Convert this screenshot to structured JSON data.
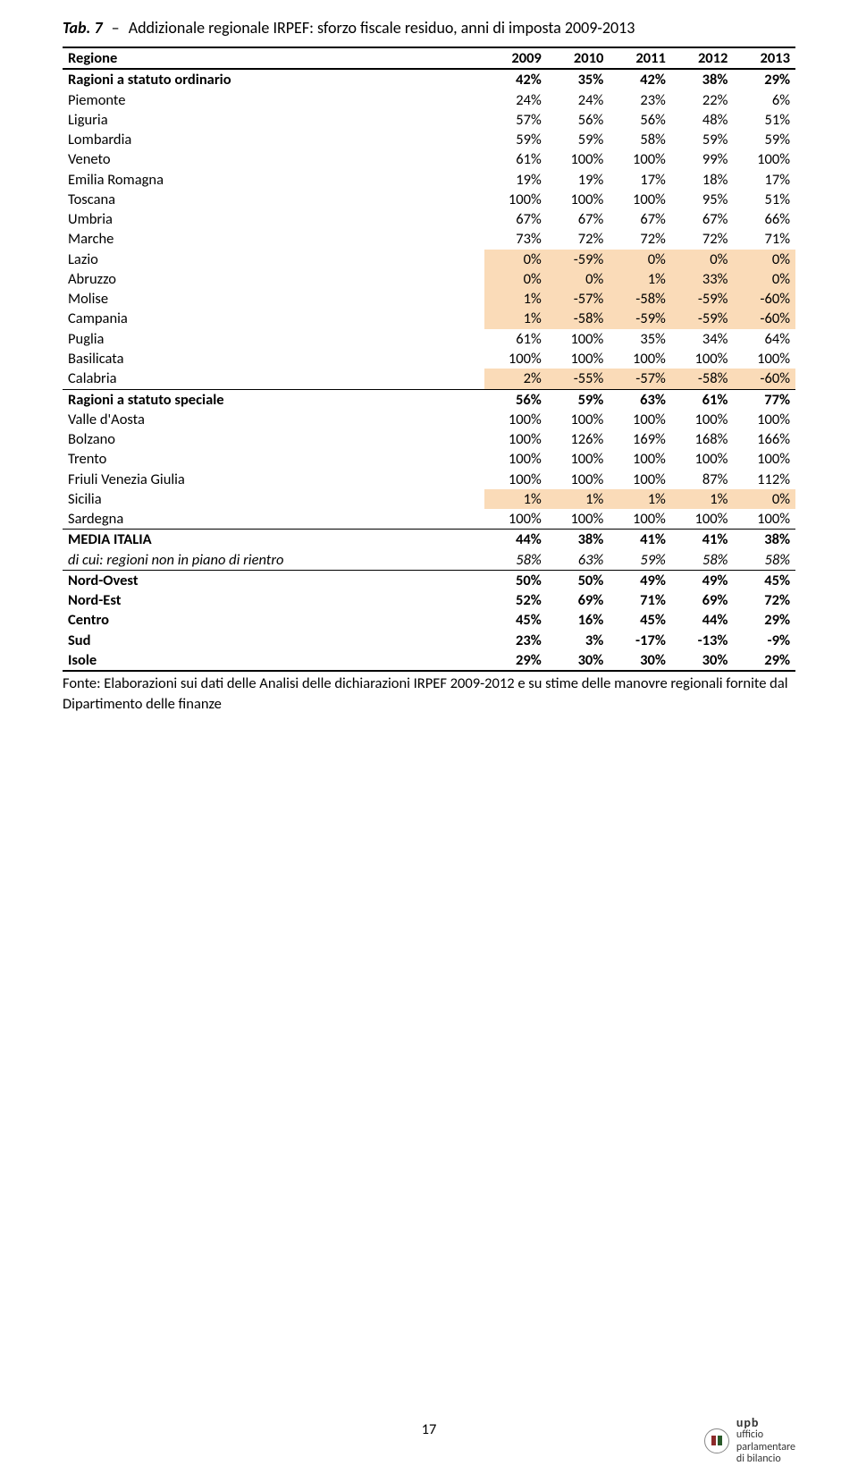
{
  "title": {
    "prefix": "Tab. 7",
    "dash": "–",
    "text": "Addizionale regionale IRPEF: sforzo fiscale residuo, anni di imposta 2009-2013"
  },
  "columns": [
    "Regione",
    "2009",
    "2010",
    "2011",
    "2012",
    "2013"
  ],
  "rows": [
    {
      "c": [
        "Ragioni a statuto ordinario",
        "42%",
        "35%",
        "42%",
        "38%",
        "29%"
      ],
      "bold": true,
      "topBorder": "bt2",
      "hl": []
    },
    {
      "c": [
        "Piemonte",
        "24%",
        "24%",
        "23%",
        "22%",
        "6%"
      ],
      "hl": []
    },
    {
      "c": [
        "Liguria",
        "57%",
        "56%",
        "56%",
        "48%",
        "51%"
      ],
      "hl": []
    },
    {
      "c": [
        "Lombardia",
        "59%",
        "59%",
        "58%",
        "59%",
        "59%"
      ],
      "hl": []
    },
    {
      "c": [
        "Veneto",
        "61%",
        "100%",
        "100%",
        "99%",
        "100%"
      ],
      "hl": []
    },
    {
      "c": [
        "Emilia Romagna",
        "19%",
        "19%",
        "17%",
        "18%",
        "17%"
      ],
      "hl": []
    },
    {
      "c": [
        "Toscana",
        "100%",
        "100%",
        "100%",
        "95%",
        "51%"
      ],
      "hl": []
    },
    {
      "c": [
        "Umbria",
        "67%",
        "67%",
        "67%",
        "67%",
        "66%"
      ],
      "hl": []
    },
    {
      "c": [
        "Marche",
        "73%",
        "72%",
        "72%",
        "72%",
        "71%"
      ],
      "hl": []
    },
    {
      "c": [
        "Lazio",
        "0%",
        "-59%",
        "0%",
        "0%",
        "0%"
      ],
      "hl": [
        1,
        2,
        3,
        4,
        5
      ]
    },
    {
      "c": [
        "Abruzzo",
        "0%",
        "0%",
        "1%",
        "33%",
        "0%"
      ],
      "hl": [
        1,
        2,
        3,
        4,
        5
      ]
    },
    {
      "c": [
        "Molise",
        "1%",
        "-57%",
        "-58%",
        "-59%",
        "-60%"
      ],
      "hl": [
        1,
        2,
        3,
        4,
        5
      ]
    },
    {
      "c": [
        "Campania",
        "1%",
        "-58%",
        "-59%",
        "-59%",
        "-60%"
      ],
      "hl": [
        1,
        2,
        3,
        4,
        5
      ]
    },
    {
      "c": [
        "Puglia",
        "61%",
        "100%",
        "35%",
        "34%",
        "64%"
      ],
      "hl": []
    },
    {
      "c": [
        "Basilicata",
        "100%",
        "100%",
        "100%",
        "100%",
        "100%"
      ],
      "hl": []
    },
    {
      "c": [
        "Calabria",
        "2%",
        "-55%",
        "-57%",
        "-58%",
        "-60%"
      ],
      "hl": [
        1,
        2,
        3,
        4,
        5
      ],
      "bottomBorder": "bb1"
    },
    {
      "c": [
        "Ragioni a statuto speciale",
        "56%",
        "59%",
        "63%",
        "61%",
        "77%"
      ],
      "bold": true,
      "hl": []
    },
    {
      "c": [
        "Valle d'Aosta",
        "100%",
        "100%",
        "100%",
        "100%",
        "100%"
      ],
      "hl": []
    },
    {
      "c": [
        "Bolzano",
        "100%",
        "126%",
        "169%",
        "168%",
        "166%"
      ],
      "hl": []
    },
    {
      "c": [
        "Trento",
        "100%",
        "100%",
        "100%",
        "100%",
        "100%"
      ],
      "hl": []
    },
    {
      "c": [
        "Friuli Venezia Giulia",
        "100%",
        "100%",
        "100%",
        "87%",
        "112%"
      ],
      "hl": []
    },
    {
      "c": [
        "Sicilia",
        "1%",
        "1%",
        "1%",
        "1%",
        "0%"
      ],
      "hl": [
        1,
        2,
        3,
        4,
        5
      ]
    },
    {
      "c": [
        "Sardegna",
        "100%",
        "100%",
        "100%",
        "100%",
        "100%"
      ],
      "hl": [],
      "bottomBorder": "bb1"
    },
    {
      "c": [
        "MEDIA ITALIA",
        "44%",
        "38%",
        "41%",
        "41%",
        "38%"
      ],
      "bold": true,
      "hl": []
    },
    {
      "c": [
        "di cui: regioni non in piano di rientro",
        "58%",
        "63%",
        "59%",
        "58%",
        "58%"
      ],
      "italic": true,
      "hl": [],
      "bottomBorder": "bb1"
    },
    {
      "c": [
        "Nord-Ovest",
        "50%",
        "50%",
        "49%",
        "49%",
        "45%"
      ],
      "bold": true,
      "hl": []
    },
    {
      "c": [
        "Nord-Est",
        "52%",
        "69%",
        "71%",
        "69%",
        "72%"
      ],
      "bold": true,
      "hl": []
    },
    {
      "c": [
        "Centro",
        "45%",
        "16%",
        "45%",
        "44%",
        "29%"
      ],
      "bold": true,
      "hl": []
    },
    {
      "c": [
        "Sud",
        "23%",
        "3%",
        "-17%",
        "-13%",
        "-9%"
      ],
      "bold": true,
      "hl": []
    },
    {
      "c": [
        "Isole",
        "29%",
        "30%",
        "30%",
        "30%",
        "29%"
      ],
      "bold": true,
      "hl": [],
      "bottomBorder": "bb2"
    }
  ],
  "source": "Fonte: Elaborazioni sui dati delle Analisi delle dichiarazioni IRPEF 2009-2012 e su stime delle manovre regionali fornite dal Dipartimento delle finanze",
  "pagenum": "17",
  "logo": {
    "upb": "upb",
    "l1": "ufficio",
    "l2": "parlamentare",
    "l3": "di bilancio"
  },
  "colors": {
    "highlight": "#fadbb8",
    "border": "#000000",
    "text": "#000000",
    "background": "#ffffff"
  }
}
